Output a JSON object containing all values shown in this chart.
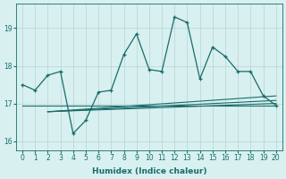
{
  "xlabel": "Humidex (Indice chaleur)",
  "x_main": [
    0,
    1,
    2,
    3,
    4,
    5,
    6,
    7,
    8,
    9,
    10,
    11,
    12,
    13,
    14,
    15,
    16,
    17,
    18,
    19,
    20
  ],
  "y_main": [
    17.5,
    17.35,
    17.75,
    17.85,
    16.2,
    16.55,
    17.3,
    17.35,
    18.3,
    18.85,
    17.9,
    17.85,
    19.3,
    19.15,
    17.65,
    18.5,
    18.25,
    17.85,
    17.85,
    17.2,
    16.95
  ],
  "flat_lines": [
    {
      "x0": 0,
      "x1": 20,
      "y0": 16.95,
      "y1": 16.95
    },
    {
      "x0": 2,
      "x1": 20,
      "y0": 16.78,
      "y1": 17.0
    },
    {
      "x0": 2,
      "x1": 20,
      "y0": 16.78,
      "y1": 17.08
    },
    {
      "x0": 2,
      "x1": 20,
      "y0": 16.78,
      "y1": 17.2
    }
  ],
  "yticks": [
    16,
    17,
    18,
    19
  ],
  "xticks": [
    0,
    1,
    2,
    3,
    4,
    5,
    6,
    7,
    8,
    9,
    10,
    11,
    12,
    13,
    14,
    15,
    16,
    17,
    18,
    19,
    20
  ],
  "xlim": [
    -0.5,
    20.5
  ],
  "ylim": [
    15.75,
    19.65
  ],
  "line_color": "#1a6b6b",
  "bg_color": "#d8f0f0",
  "grid_color": "#b8d4d4"
}
